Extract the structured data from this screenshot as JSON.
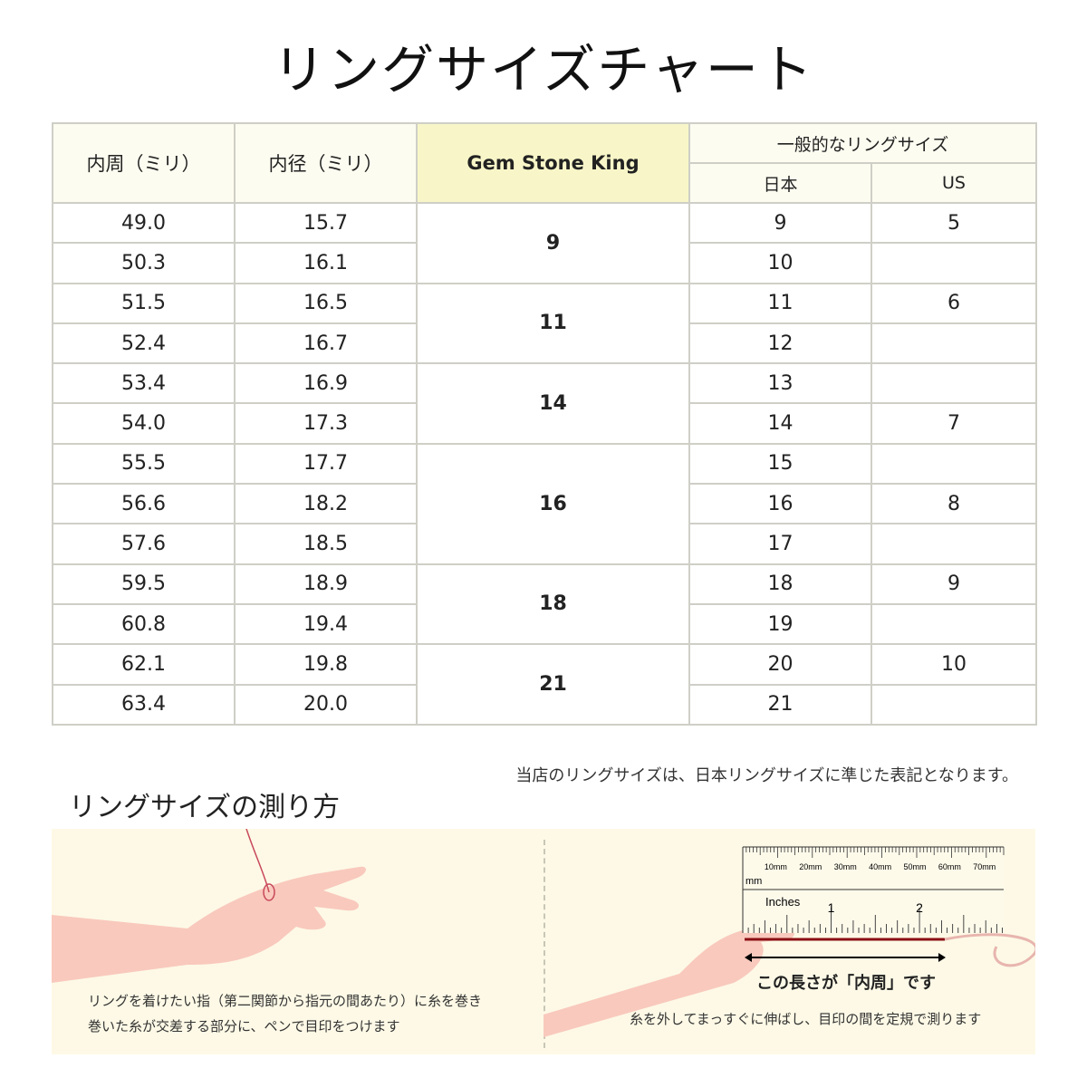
{
  "title": "リングサイズチャート",
  "table": {
    "headers": {
      "inner_circumference": "内周（ミリ）",
      "inner_diameter": "内径（ミリ）",
      "brand": "Gem Stone King",
      "general": "一般的なリングサイズ",
      "japan": "日本",
      "us": "US"
    },
    "rows": [
      {
        "circ": "49.0",
        "diam": "15.7",
        "jp": "9",
        "us": "5"
      },
      {
        "circ": "50.3",
        "diam": "16.1",
        "jp": "10",
        "us": ""
      },
      {
        "circ": "51.5",
        "diam": "16.5",
        "jp": "11",
        "us": "6"
      },
      {
        "circ": "52.4",
        "diam": "16.7",
        "jp": "12",
        "us": ""
      },
      {
        "circ": "53.4",
        "diam": "16.9",
        "jp": "13",
        "us": ""
      },
      {
        "circ": "54.0",
        "diam": "17.3",
        "jp": "14",
        "us": "7"
      },
      {
        "circ": "55.5",
        "diam": "17.7",
        "jp": "15",
        "us": ""
      },
      {
        "circ": "56.6",
        "diam": "18.2",
        "jp": "16",
        "us": "8"
      },
      {
        "circ": "57.6",
        "diam": "18.5",
        "jp": "17",
        "us": ""
      },
      {
        "circ": "59.5",
        "diam": "18.9",
        "jp": "18",
        "us": "9"
      },
      {
        "circ": "60.8",
        "diam": "19.4",
        "jp": "19",
        "us": ""
      },
      {
        "circ": "62.1",
        "diam": "19.8",
        "jp": "20",
        "us": "10"
      },
      {
        "circ": "63.4",
        "diam": "20.0",
        "jp": "21",
        "us": ""
      }
    ],
    "gem_groups": [
      {
        "size": "9",
        "span": 2
      },
      {
        "size": "11",
        "span": 2
      },
      {
        "size": "14",
        "span": 2
      },
      {
        "size": "16",
        "span": 3
      },
      {
        "size": "18",
        "span": 2
      },
      {
        "size": "21",
        "span": 2
      }
    ]
  },
  "note": "当店のリングサイズは、日本リングサイズに準じた表記となります。",
  "howto": {
    "heading": "リングサイズの測り方",
    "step1_line1": "リングを着けたい指（第二関節から指元の間あたり）に糸を巻き",
    "step1_line2": "巻いた糸が交差する部分に、ペンで目印をつけます",
    "length_label": "この長さが「内周」です",
    "step2": "糸を外してまっすぐに伸ばし、目印の間を定規で測ります",
    "ruler": {
      "mm_labels": [
        "10mm",
        "20mm",
        "30mm",
        "40mm",
        "50mm",
        "60mm",
        "70mm"
      ],
      "mm_unit": "mm",
      "inch_unit": "Inches",
      "inch_labels": [
        "1",
        "2"
      ]
    }
  },
  "colors": {
    "panel": "#fdf9e6",
    "header": "#fdfcf0",
    "brand_header": "#f8f6c8",
    "thread": "#8b0f14",
    "skin": "#f9c9bd"
  }
}
